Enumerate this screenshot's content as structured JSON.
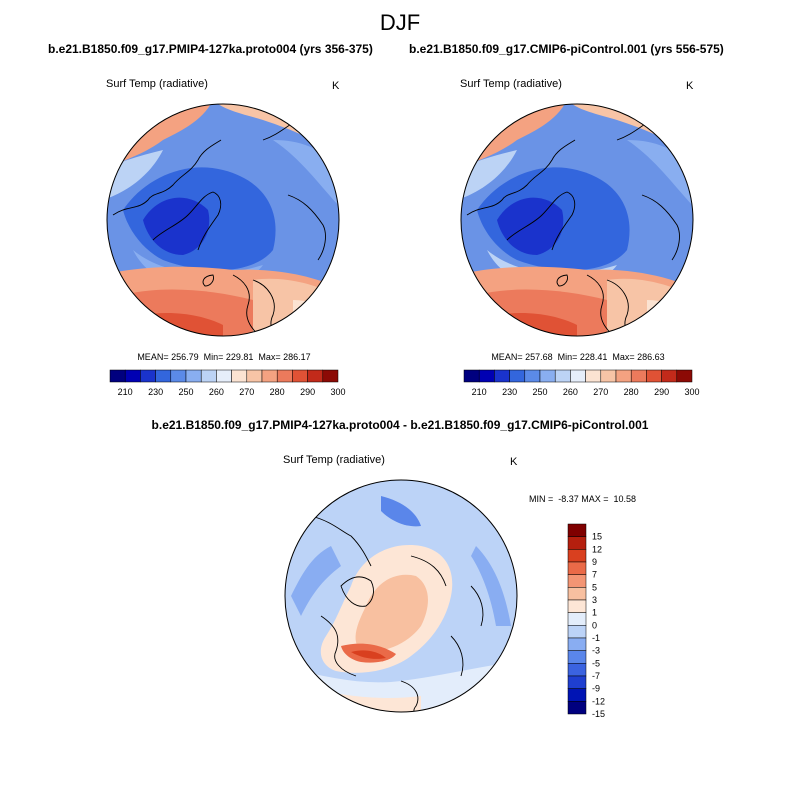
{
  "title": "DJF",
  "panel1": {
    "title": "b.e21.B1850.f09_g17.PMIP4-127ka.proto004 (yrs 356-375)",
    "var": "Surf Temp (radiative)",
    "units": "K",
    "stats": "MEAN= 256.79  Min= 229.81  Max= 286.17",
    "cbar_labels": [
      "210",
      "230",
      "250",
      "260",
      "270",
      "280",
      "290",
      "300"
    ]
  },
  "panel2": {
    "title": "b.e21.B1850.f09_g17.CMIP6-piControl.001 (yrs 556-575)",
    "var": "Surf Temp (radiative)",
    "units": "K",
    "stats": "MEAN= 257.68  Min= 228.41  Max= 286.63",
    "cbar_labels": [
      "210",
      "230",
      "250",
      "260",
      "270",
      "280",
      "290",
      "300"
    ]
  },
  "panel3": {
    "title": "b.e21.B1850.f09_g17.PMIP4-127ka.proto004 - b.e21.B1850.f09_g17.CMIP6-piControl.001",
    "var": "Surf Temp (radiative)",
    "units": "K",
    "stats": "MIN =  -8.37 MAX =  10.58",
    "cbar_labels": [
      "15",
      "12",
      "9",
      "7",
      "5",
      "3",
      "1",
      "0",
      "-1",
      "-3",
      "-5",
      "-7",
      "-9",
      "-12",
      "-15"
    ]
  },
  "colors": {
    "abs_scale": [
      "#00007f",
      "#0000b3",
      "#1a33cc",
      "#3366dd",
      "#5b8ae8",
      "#89aef0",
      "#bcd3f5",
      "#e6eefa",
      "#fbe3d2",
      "#f7c4a6",
      "#f4a281",
      "#ec7a5c",
      "#e05235",
      "#c22a1a",
      "#8c0a05"
    ],
    "diff_scale": [
      "#00007f",
      "#0014b4",
      "#1f3fd0",
      "#3b63e0",
      "#5a86ea",
      "#89adf2",
      "#bcd3f7",
      "#e3edfb",
      "#fde6d6",
      "#f8c0a0",
      "#f39574",
      "#ea6a48",
      "#d9401f",
      "#b51f0e",
      "#7f0000"
    ]
  }
}
